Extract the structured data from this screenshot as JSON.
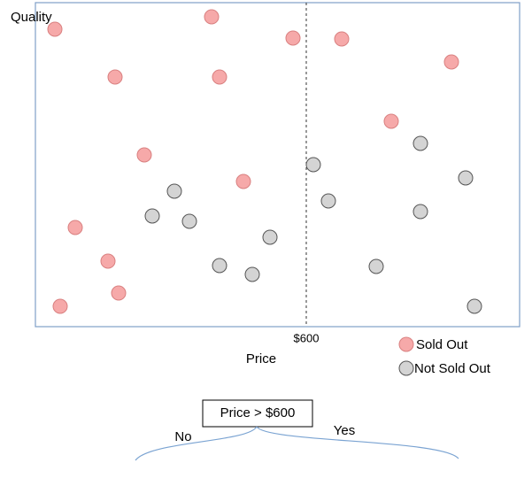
{
  "y_axis_label": "Quality",
  "x_axis_label": "Price",
  "threshold_label": "$600",
  "legend": [
    "Sold Out",
    "Not Sold Out"
  ],
  "decision": {
    "label": "Price > $600",
    "no": "No",
    "yes": "Yes"
  }
}
